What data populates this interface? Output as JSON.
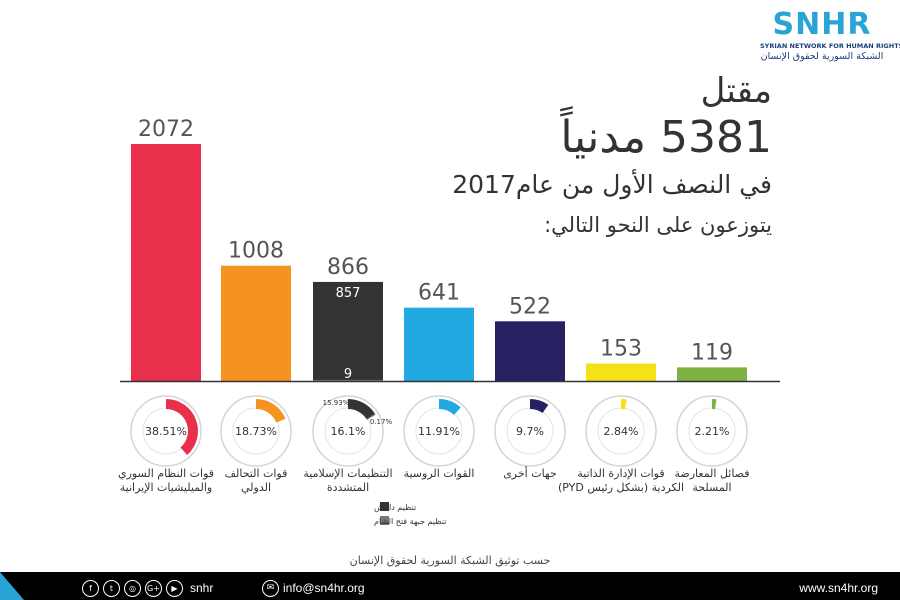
{
  "logo": {
    "mark": "SNHR",
    "english": "SYRIAN NETWORK FOR HUMAN RIGHTS",
    "arabic": "الشبكة السورية لحقوق الإنسان"
  },
  "title": {
    "line1": "مقتل",
    "line2": "5381 مدنياً",
    "line3": "في النصف الأول من عام2017",
    "line4": "يتوزعون على النحو التالي:"
  },
  "chart_data": {
    "type": "bar",
    "categories": [
      [
        "قوات النظام السوري",
        "والميليشيات الإيرانية"
      ],
      [
        "قوات التحالف",
        "الدولي"
      ],
      [
        "التنظيمات الإسلامية",
        "المتشددة"
      ],
      [
        "القوات الروسية"
      ],
      [
        "جهات أخرى"
      ],
      [
        "قوات الإدارة الذاتية",
        "الكردية (بشكل رئيس PYD)"
      ],
      [
        "فصائل المعارضة",
        "المسلحة"
      ]
    ],
    "values": [
      2072,
      1008,
      866,
      641,
      522,
      153,
      119
    ],
    "value_labels": [
      "2072",
      "1008",
      "866",
      "641",
      "522",
      "153",
      "119"
    ],
    "percent_labels": [
      "38.51%",
      "18.73%",
      "16.1%",
      "11.91%",
      "9.7%",
      "2.84%",
      "2.21%"
    ],
    "percents": [
      38.51,
      18.73,
      16.1,
      11.91,
      9.7,
      2.84,
      2.21
    ],
    "colors": [
      "#e8304c",
      "#f59322",
      "#333333",
      "#22a9e1",
      "#262262",
      "#f4e118",
      "#7cb342"
    ],
    "stacked_bar": {
      "index": 2,
      "parts": [
        {
          "value": 857,
          "label": "857",
          "percent": 15.93,
          "percent_label": "15.93%",
          "color": "#333333",
          "legend": "تنظيم داعش"
        },
        {
          "value": 9,
          "label": "9",
          "percent": 0.17,
          "percent_label": "0.17%",
          "color": "#777777",
          "legend": "تنظيم جبهة فتح الشام"
        }
      ]
    },
    "ylim": [
      0,
      2072
    ]
  },
  "footer": {
    "note": "حسب توثيق الشبكة السورية لحقوق الإنسان",
    "social_icons": [
      "facebook-icon",
      "twitter-icon",
      "instagram-icon",
      "google-plus-icon",
      "youtube-icon"
    ],
    "social_glyphs": [
      "f",
      "t",
      "◎",
      "G+",
      "▶"
    ],
    "handle": "snhr",
    "email": "info@sn4hr.org",
    "website": "www.sn4hr.org"
  }
}
